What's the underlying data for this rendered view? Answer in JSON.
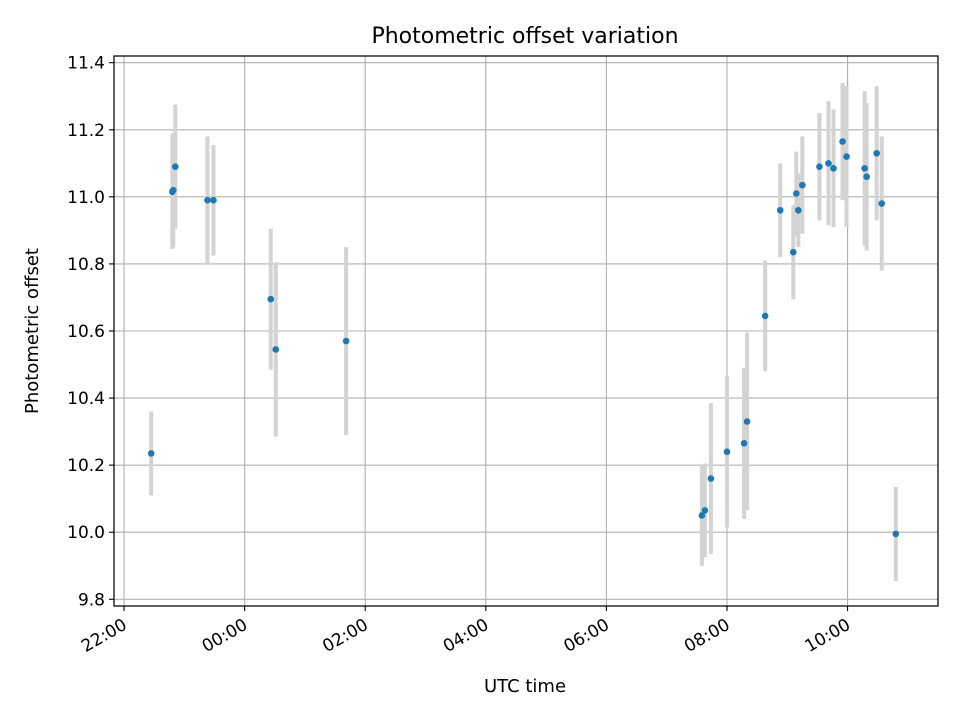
{
  "chart_data": {
    "type": "scatter",
    "title": "Photometric offset variation",
    "xlabel": "UTC time",
    "ylabel": "Photometric offset",
    "x_unit": "HH:MM",
    "xlim": [
      "21:50",
      "11:30"
    ],
    "ylim": [
      9.78,
      11.42
    ],
    "xticks": [
      "22:00",
      "00:00",
      "02:00",
      "04:00",
      "06:00",
      "08:00",
      "10:00"
    ],
    "yticks": [
      9.8,
      10.0,
      10.2,
      10.4,
      10.6,
      10.8,
      11.0,
      11.2,
      11.4
    ],
    "grid": true,
    "errorbar_color": "#d3d3d3",
    "point_color": "#1f77b4",
    "points": [
      {
        "x": "22:27",
        "y": 10.235,
        "err": 0.125
      },
      {
        "x": "22:48",
        "y": 11.015,
        "err": 0.17
      },
      {
        "x": "22:49",
        "y": 11.02,
        "err": 0.17
      },
      {
        "x": "22:51",
        "y": 11.09,
        "err": 0.185
      },
      {
        "x": "23:23",
        "y": 10.99,
        "err": 0.19
      },
      {
        "x": "23:29",
        "y": 10.99,
        "err": 0.165
      },
      {
        "x": "00:26",
        "y": 10.695,
        "err": 0.21
      },
      {
        "x": "00:31",
        "y": 10.545,
        "err": 0.26
      },
      {
        "x": "01:41",
        "y": 10.57,
        "err": 0.28
      },
      {
        "x": "07:35",
        "y": 10.05,
        "err": 0.15
      },
      {
        "x": "07:38",
        "y": 10.065,
        "err": 0.14
      },
      {
        "x": "07:44",
        "y": 10.16,
        "err": 0.225
      },
      {
        "x": "08:00",
        "y": 10.24,
        "err": 0.225
      },
      {
        "x": "08:17",
        "y": 10.265,
        "err": 0.225
      },
      {
        "x": "08:20",
        "y": 10.33,
        "err": 0.265
      },
      {
        "x": "08:38",
        "y": 10.645,
        "err": 0.165
      },
      {
        "x": "08:53",
        "y": 10.96,
        "err": 0.14
      },
      {
        "x": "09:06",
        "y": 10.835,
        "err": 0.14
      },
      {
        "x": "09:09",
        "y": 11.01,
        "err": 0.125
      },
      {
        "x": "09:11",
        "y": 10.96,
        "err": 0.11
      },
      {
        "x": "09:15",
        "y": 11.035,
        "err": 0.145
      },
      {
        "x": "09:32",
        "y": 11.09,
        "err": 0.16
      },
      {
        "x": "09:41",
        "y": 11.1,
        "err": 0.185
      },
      {
        "x": "09:46",
        "y": 11.085,
        "err": 0.175
      },
      {
        "x": "09:55",
        "y": 11.165,
        "err": 0.175
      },
      {
        "x": "09:59",
        "y": 11.12,
        "err": 0.21
      },
      {
        "x": "10:17",
        "y": 11.085,
        "err": 0.23
      },
      {
        "x": "10:19",
        "y": 11.06,
        "err": 0.22
      },
      {
        "x": "10:29",
        "y": 11.13,
        "err": 0.2
      },
      {
        "x": "10:34",
        "y": 10.98,
        "err": 0.2
      },
      {
        "x": "10:48",
        "y": 9.995,
        "err": 0.14
      }
    ]
  }
}
